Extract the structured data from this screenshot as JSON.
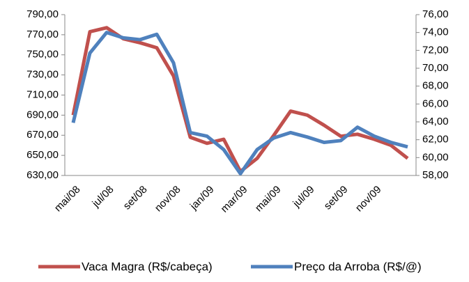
{
  "chart_data": {
    "type": "line",
    "categories": [
      "mai/08",
      null,
      "jul/08",
      null,
      "set/08",
      null,
      "nov/08",
      null,
      "jan/09",
      null,
      "mar/09",
      null,
      "mai/09",
      null,
      "jul/09",
      null,
      "set/09",
      null,
      "nov/09",
      null,
      null
    ],
    "series": [
      {
        "name": "Vaca Magra (R$/cabeça)",
        "color": "#c0504d",
        "values": [
          690,
          773,
          777,
          766,
          762,
          757,
          729,
          668,
          662,
          666,
          634,
          647,
          670,
          694,
          690,
          680,
          669,
          671,
          666,
          660,
          647
        ]
      },
      {
        "name": "Preço da Arroba (R$/@)",
        "color": "#4f81bd",
        "axis": "y2",
        "values": [
          63.9,
          71.7,
          74.0,
          73.4,
          73.2,
          73.8,
          70.6,
          62.8,
          62.4,
          60.9,
          58.2,
          60.9,
          62.2,
          62.8,
          62.3,
          61.7,
          61.9,
          63.4,
          62.4,
          61.7,
          61.2
        ]
      }
    ],
    "ylim": [
      630,
      790
    ],
    "yticks": [
      {
        "value": 630,
        "label": "630,00"
      },
      {
        "value": 650,
        "label": "650,00"
      },
      {
        "value": 670,
        "label": "670,00"
      },
      {
        "value": 690,
        "label": "690,00"
      },
      {
        "value": 710,
        "label": "710,00"
      },
      {
        "value": 730,
        "label": "730,00"
      },
      {
        "value": 750,
        "label": "750,00"
      },
      {
        "value": 770,
        "label": "770,00"
      },
      {
        "value": 790,
        "label": "790,00"
      }
    ],
    "y2lim": [
      58,
      76
    ],
    "y2ticks": [
      {
        "value": 58,
        "label": "58,00"
      },
      {
        "value": 60,
        "label": "60,00"
      },
      {
        "value": 62,
        "label": "62,00"
      },
      {
        "value": 64,
        "label": "64,00"
      },
      {
        "value": 66,
        "label": "66,00"
      },
      {
        "value": 68,
        "label": "68,00"
      },
      {
        "value": 70,
        "label": "70,00"
      },
      {
        "value": 72,
        "label": "72,00"
      },
      {
        "value": 74,
        "label": "74,00"
      },
      {
        "value": 76,
        "label": "76,00"
      }
    ],
    "legend": "bottom"
  }
}
